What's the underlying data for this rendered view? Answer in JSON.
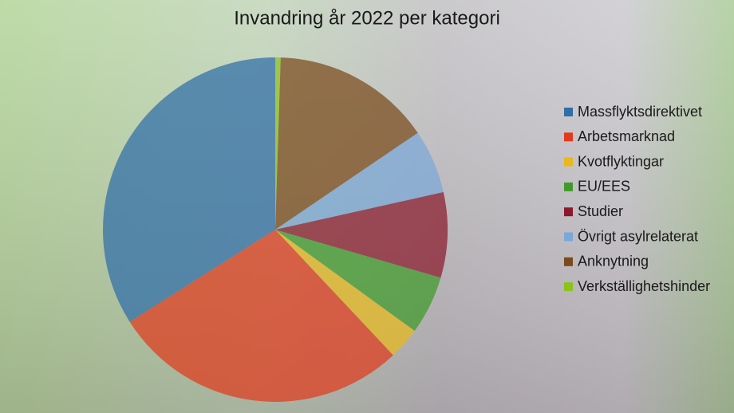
{
  "chart_data": {
    "type": "pie",
    "title": "Invandring år 2022 per kategori",
    "categories": [
      "Massflyktsdirektivet",
      "Arbetsmarknad",
      "Kvotflyktingar",
      "EU/EES",
      "Studier",
      "Övrigt asylrelaterat",
      "Anknytning",
      "Verkställighetshinder"
    ],
    "values": [
      34,
      28,
      3,
      5.5,
      8,
      6,
      15,
      0.5
    ],
    "colors": [
      "#2f6ea8",
      "#e03a1c",
      "#e8b81c",
      "#3f9a2a",
      "#8a1a2c",
      "#7aa8d8",
      "#7a4a1a",
      "#8cc21c"
    ],
    "direction": "counterclockwise"
  }
}
